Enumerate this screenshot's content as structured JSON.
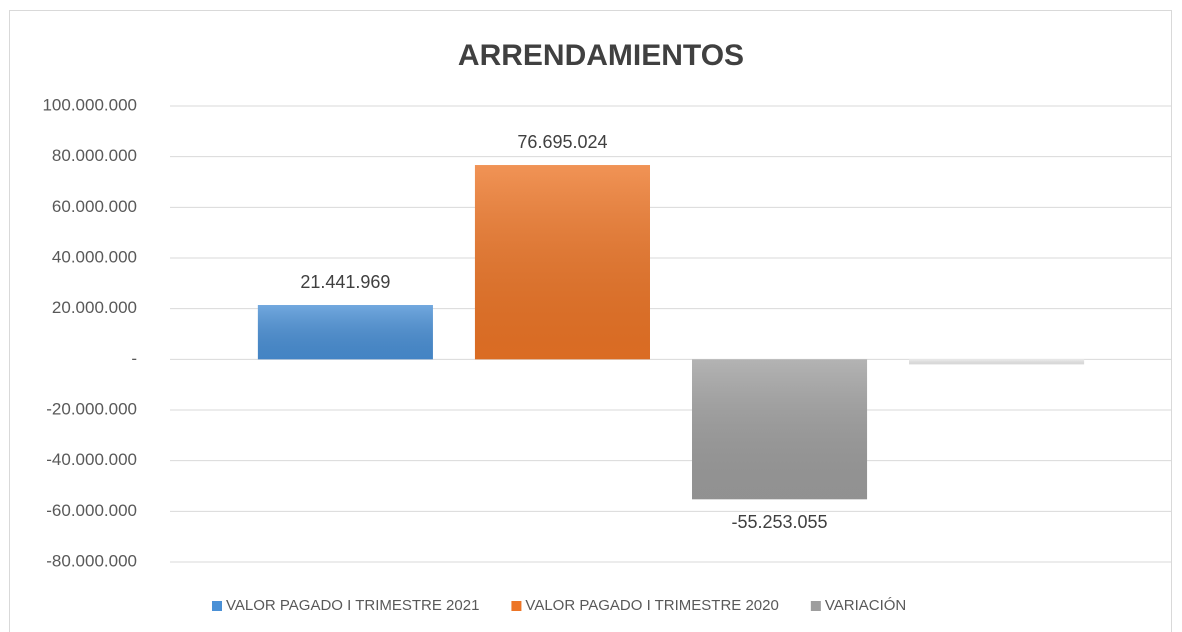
{
  "chart_data": {
    "type": "bar",
    "title": "ARRENDAMIENTOS",
    "series": [
      {
        "name": "VALOR PAGADO  I TRIMESTRE  2021",
        "color": "#4a90d6",
        "values": [
          21441969
        ],
        "value_labels": [
          "21.441.969"
        ]
      },
      {
        "name": "VALOR PAGADO I TRIMESTRE 2020",
        "color": "#ed7526",
        "values": [
          76695024
        ],
        "value_labels": [
          "76.695.024"
        ]
      },
      {
        "name": "VARIACIÓN",
        "color": "#9e9e9e",
        "values": [
          -55253055
        ],
        "value_labels": [
          "-55.253.055"
        ]
      },
      {
        "name": null,
        "color": "#ececec",
        "values": [
          -2000000
        ]
      }
    ],
    "ylim": [
      -80000000,
      100000000
    ],
    "yticks": [
      {
        "value": -80000000,
        "label": "-80.000.000"
      },
      {
        "value": -60000000,
        "label": "-60.000.000"
      },
      {
        "value": -40000000,
        "label": "-40.000.000"
      },
      {
        "value": -20000000,
        "label": "-20.000.000"
      },
      {
        "value": 0,
        "label": "-"
      },
      {
        "value": 20000000,
        "label": "20.000.000"
      },
      {
        "value": 40000000,
        "label": "40.000.000"
      },
      {
        "value": 60000000,
        "label": "60.000.000"
      },
      {
        "value": 80000000,
        "label": "80.000.000"
      },
      {
        "value": 100000000,
        "label": "100.000.000"
      }
    ],
    "grid": true,
    "legend": "bottom"
  }
}
